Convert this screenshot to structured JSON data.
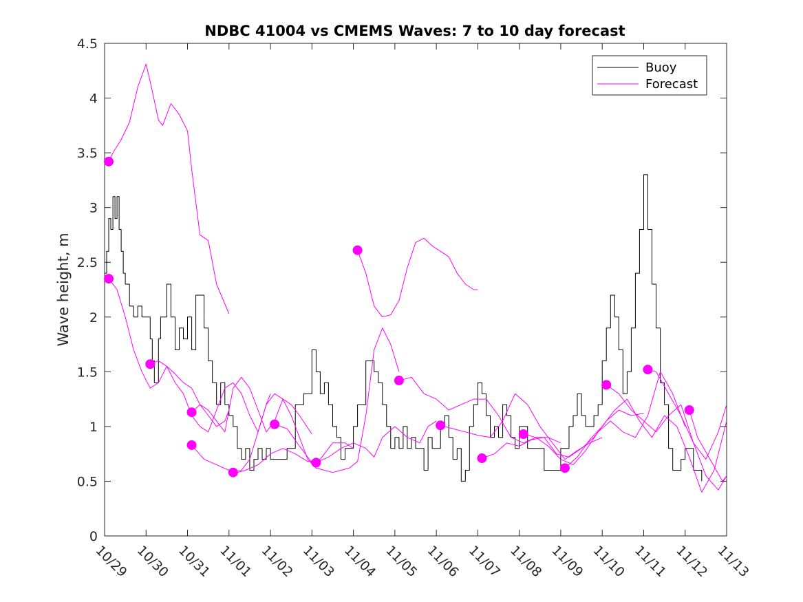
{
  "chart_data": {
    "type": "line",
    "title": "NDBC 41004 vs CMEMS Waves: 7 to 10 day forecast",
    "xlabel": "",
    "ylabel": "Wave height, m",
    "xlim": [
      0,
      15
    ],
    "ylim": [
      0,
      4.5
    ],
    "y_ticks": [
      0,
      0.5,
      1,
      1.5,
      2,
      2.5,
      3,
      3.5,
      4,
      4.5
    ],
    "y_tick_labels": [
      "0",
      "0.5",
      "1",
      "1.5",
      "2",
      "2.5",
      "3",
      "3.5",
      "4",
      "4.5"
    ],
    "x_ticks": [
      0,
      1,
      2,
      3,
      4,
      5,
      6,
      7,
      8,
      9,
      10,
      11,
      12,
      13,
      14,
      15
    ],
    "x_tick_labels": [
      "10/29",
      "10/30",
      "10/31",
      "11/01",
      "11/02",
      "11/03",
      "11/04",
      "11/05",
      "11/06",
      "11/07",
      "11/08",
      "11/09",
      "11/10",
      "11/11",
      "11/12",
      "11/13"
    ],
    "x_unit": "days since 10/29",
    "grid": false,
    "legend": {
      "position": "top-right",
      "entries": [
        "Buoy",
        "Forecast"
      ]
    },
    "colors": {
      "buoy": "#000000",
      "forecast": "#ff00ff",
      "axes": "#262626"
    },
    "series": [
      {
        "name": "Buoy",
        "color": "#000000",
        "step": true,
        "x": [
          0,
          0.05,
          0.1,
          0.15,
          0.2,
          0.25,
          0.3,
          0.35,
          0.4,
          0.45,
          0.5,
          0.6,
          0.7,
          0.8,
          0.9,
          1.0,
          1.1,
          1.15,
          1.2,
          1.3,
          1.35,
          1.4,
          1.5,
          1.6,
          1.7,
          1.8,
          1.9,
          2.0,
          2.1,
          2.2,
          2.3,
          2.4,
          2.5,
          2.6,
          2.7,
          2.8,
          2.9,
          3.0,
          3.1,
          3.2,
          3.3,
          3.4,
          3.5,
          3.6,
          3.7,
          3.8,
          3.9,
          4.0,
          4.2,
          4.4,
          4.6,
          4.8,
          5.0,
          5.1,
          5.2,
          5.3,
          5.4,
          5.5,
          5.6,
          5.7,
          5.8,
          5.9,
          6.0,
          6.1,
          6.3,
          6.5,
          6.6,
          6.7,
          6.8,
          6.9,
          7.0,
          7.1,
          7.2,
          7.3,
          7.4,
          7.5,
          7.6,
          7.7,
          7.8,
          7.9,
          8.0,
          8.1,
          8.2,
          8.3,
          8.4,
          8.5,
          8.6,
          8.7,
          8.8,
          8.9,
          9.0,
          9.1,
          9.2,
          9.3,
          9.4,
          9.5,
          9.6,
          9.7,
          9.8,
          9.9,
          10.0,
          10.2,
          10.4,
          10.6,
          10.8,
          11.0,
          11.1,
          11.2,
          11.3,
          11.4,
          11.5,
          11.6,
          11.7,
          11.8,
          11.9,
          12.0,
          12.1,
          12.2,
          12.3,
          12.4,
          12.5,
          12.6,
          12.7,
          12.8,
          12.9,
          13.0,
          13.1,
          13.2,
          13.3,
          13.4,
          13.5,
          13.6,
          13.7,
          13.8,
          13.9,
          14.0,
          14.2,
          14.4
        ],
        "values": [
          2.4,
          2.6,
          2.9,
          2.8,
          3.1,
          2.9,
          3.1,
          2.8,
          2.6,
          2.4,
          2.3,
          2.1,
          2.0,
          2.1,
          2.0,
          2.0,
          1.8,
          1.6,
          1.4,
          1.8,
          2.0,
          2.0,
          2.3,
          2.0,
          1.7,
          1.9,
          1.8,
          2.0,
          1.7,
          2.2,
          2.2,
          1.9,
          1.6,
          1.4,
          1.2,
          1.4,
          1.2,
          1.1,
          1.0,
          0.8,
          0.7,
          0.8,
          0.6,
          0.7,
          0.8,
          0.7,
          0.8,
          0.7,
          0.7,
          0.8,
          1.2,
          1.3,
          1.7,
          1.5,
          1.3,
          1.4,
          1.2,
          1.0,
          0.9,
          0.7,
          0.8,
          0.8,
          1.0,
          1.2,
          1.6,
          1.5,
          1.4,
          1.2,
          1.0,
          0.8,
          0.9,
          0.8,
          1.0,
          0.8,
          0.9,
          0.8,
          0.8,
          0.6,
          0.9,
          0.8,
          0.8,
          1.0,
          1.1,
          0.9,
          0.7,
          0.8,
          0.5,
          0.6,
          1.0,
          1.2,
          1.4,
          1.3,
          1.1,
          0.9,
          1.0,
          0.9,
          1.2,
          1.1,
          0.9,
          0.8,
          1.0,
          0.8,
          0.8,
          0.6,
          0.6,
          0.8,
          0.8,
          1.0,
          1.1,
          1.3,
          1.1,
          1.0,
          1.0,
          1.1,
          1.2,
          1.6,
          1.9,
          2.2,
          2.0,
          1.7,
          1.3,
          1.5,
          1.9,
          2.4,
          2.8,
          3.3,
          2.8,
          2.3,
          1.9,
          1.4,
          1.2,
          0.8,
          0.6,
          0.6,
          0.7,
          0.8,
          0.6,
          0.5
        ]
      },
      {
        "name": "Forecast",
        "color": "#ff00ff",
        "x": [
          0.1,
          0.2,
          0.4,
          0.6,
          0.8,
          1.0,
          1.1,
          1.3,
          1.4,
          1.6,
          1.8,
          2.0,
          2.1,
          2.3,
          2.5,
          2.7,
          3.0
        ],
        "values": [
          3.42,
          3.5,
          3.62,
          3.78,
          4.1,
          4.31,
          4.15,
          3.8,
          3.75,
          3.95,
          3.85,
          3.7,
          3.35,
          2.75,
          2.7,
          2.3,
          2.03
        ]
      },
      {
        "name": "Forecast",
        "color": "#ff00ff",
        "x": [
          0.1,
          0.3,
          0.5,
          0.7,
          0.9,
          1.1,
          1.3,
          1.5,
          1.7,
          1.9,
          2.1,
          2.3,
          2.5,
          2.7,
          2.9,
          3.0
        ],
        "values": [
          2.35,
          2.25,
          2.0,
          1.7,
          1.5,
          1.35,
          1.4,
          1.55,
          1.48,
          1.4,
          1.35,
          1.2,
          1.1,
          1.0,
          1.05,
          1.15
        ]
      },
      {
        "name": "Forecast",
        "color": "#ff00ff",
        "x": [
          1.1,
          1.3,
          1.5,
          1.7,
          1.9,
          2.1,
          2.3,
          2.5,
          2.7,
          2.9,
          3.1,
          3.3,
          3.5,
          3.7,
          3.9,
          4.0
        ],
        "values": [
          1.57,
          1.6,
          1.55,
          1.4,
          1.3,
          1.1,
          1.0,
          0.95,
          1.15,
          1.35,
          1.4,
          1.3,
          1.1,
          0.95,
          1.2,
          1.3
        ]
      },
      {
        "name": "Forecast",
        "color": "#ff00ff",
        "x": [
          2.1,
          2.3,
          2.5,
          2.7,
          2.9,
          3.1,
          3.3,
          3.5,
          3.7,
          3.9,
          4.1,
          4.3,
          4.5,
          4.7,
          5.0
        ],
        "values": [
          1.13,
          1.2,
          1.15,
          1.05,
          0.95,
          1.35,
          1.45,
          1.35,
          1.15,
          0.95,
          1.05,
          1.25,
          1.2,
          1.1,
          0.93
        ]
      },
      {
        "name": "Forecast",
        "color": "#ff00ff",
        "x": [
          2.1,
          2.4,
          2.7,
          3.0,
          3.2,
          3.4,
          3.7,
          4.0,
          4.3,
          4.6,
          4.9,
          5.2,
          5.5,
          5.8,
          6.0
        ],
        "values": [
          0.83,
          0.7,
          0.65,
          0.6,
          0.58,
          0.6,
          0.65,
          0.75,
          0.8,
          0.75,
          0.68,
          0.7,
          0.85,
          0.85,
          0.8
        ]
      },
      {
        "name": "Forecast",
        "color": "#ff00ff",
        "x": [
          3.1,
          3.3,
          3.5,
          3.7,
          3.9,
          4.1,
          4.3,
          4.5,
          4.7,
          4.9,
          5.1,
          5.3,
          5.5,
          5.7,
          5.9,
          6.1,
          6.3,
          6.5,
          6.7,
          6.9,
          7.1
        ],
        "values": [
          0.58,
          0.6,
          0.7,
          0.95,
          1.2,
          1.3,
          1.25,
          1.1,
          0.9,
          0.7,
          0.62,
          0.6,
          0.58,
          0.6,
          0.62,
          0.68,
          1.1,
          1.7,
          1.9,
          1.75,
          1.5
        ]
      },
      {
        "name": "Forecast",
        "color": "#ff00ff",
        "x": [
          4.1,
          4.4,
          4.7,
          5.0,
          5.15,
          5.4,
          5.7,
          6.0,
          6.3,
          6.5,
          6.7,
          7.0,
          7.3,
          7.6,
          7.8,
          8.0
        ],
        "values": [
          1.02,
          0.98,
          0.82,
          0.67,
          0.68,
          0.72,
          0.8,
          0.85,
          0.8,
          0.72,
          0.9,
          1.0,
          0.9,
          0.85,
          1.0,
          1.05
        ]
      },
      {
        "name": "Forecast",
        "color": "#ff00ff",
        "x": [
          6.1,
          6.3,
          6.5,
          6.7,
          6.9,
          7.1,
          7.3,
          7.5,
          7.7,
          7.9,
          8.1,
          8.3,
          8.5,
          8.7,
          8.9,
          9.0
        ],
        "values": [
          2.61,
          2.4,
          2.1,
          2.0,
          2.02,
          2.15,
          2.45,
          2.68,
          2.72,
          2.65,
          2.6,
          2.55,
          2.4,
          2.3,
          2.25,
          2.25
        ]
      },
      {
        "name": "Forecast",
        "color": "#ff00ff",
        "x": [
          7.1,
          7.4,
          7.7,
          8.0,
          8.3,
          8.6,
          8.9,
          9.2,
          9.5,
          9.8,
          10.1,
          10.4,
          10.7,
          11.0
        ],
        "values": [
          1.42,
          1.45,
          1.3,
          1.25,
          1.15,
          1.2,
          1.25,
          1.25,
          1.1,
          0.9,
          0.85,
          0.9,
          0.9,
          0.85
        ]
      },
      {
        "name": "Forecast",
        "color": "#ff00ff",
        "x": [
          8.1,
          8.4,
          8.7,
          9.0,
          9.3,
          9.6,
          9.9,
          10.2,
          10.5,
          10.8,
          11.1,
          11.4,
          11.7,
          12.0
        ],
        "values": [
          1.01,
          0.98,
          0.95,
          0.92,
          0.9,
          1.05,
          1.3,
          1.2,
          1.0,
          0.85,
          0.7,
          0.78,
          0.85,
          0.9
        ]
      },
      {
        "name": "Forecast",
        "color": "#ff00ff",
        "x": [
          9.1,
          9.4,
          9.7,
          10.0,
          10.3,
          10.6,
          10.9,
          11.2,
          11.5,
          11.8,
          12.1,
          12.4,
          12.7,
          13.0
        ],
        "values": [
          0.71,
          0.75,
          0.85,
          0.82,
          0.88,
          0.9,
          0.75,
          0.72,
          0.8,
          0.9,
          1.05,
          1.15,
          1.1,
          1.12
        ]
      },
      {
        "name": "Forecast",
        "color": "#ff00ff",
        "x": [
          10.1,
          10.4,
          10.7,
          11.0,
          11.3,
          11.6,
          11.9,
          12.2,
          12.5,
          12.8,
          13.1,
          13.4,
          13.7,
          14.0
        ],
        "values": [
          0.93,
          0.9,
          0.82,
          0.7,
          0.65,
          0.78,
          0.95,
          1.05,
          0.95,
          0.9,
          1.1,
          1.5,
          1.3,
          1.0
        ]
      },
      {
        "name": "Forecast",
        "color": "#ff00ff",
        "x": [
          11.1,
          11.4,
          11.7,
          12.0,
          12.3,
          12.6,
          12.9,
          13.2,
          13.5,
          13.8,
          14.1,
          14.4,
          14.7,
          15.0
        ],
        "values": [
          0.62,
          0.72,
          0.88,
          1.0,
          1.15,
          1.25,
          1.05,
          0.9,
          1.1,
          1.0,
          0.72,
          0.4,
          0.6,
          1.05
        ]
      },
      {
        "name": "Forecast",
        "color": "#ff00ff",
        "x": [
          12.1,
          12.4,
          12.7,
          13.0,
          13.3,
          13.6,
          13.9,
          14.2,
          14.5,
          14.8,
          15.0
        ],
        "values": [
          1.38,
          1.3,
          1.15,
          1.05,
          0.95,
          1.1,
          1.2,
          0.85,
          0.55,
          0.42,
          0.55
        ]
      },
      {
        "name": "Forecast",
        "color": "#ff00ff",
        "x": [
          13.1,
          13.3,
          13.6,
          13.9,
          14.2,
          14.5,
          14.8,
          15.0
        ],
        "values": [
          1.52,
          1.5,
          1.3,
          1.1,
          0.85,
          0.7,
          0.95,
          1.2
        ]
      },
      {
        "name": "Forecast",
        "color": "#ff00ff",
        "x": [
          14.1,
          14.3,
          14.6,
          14.9,
          15.0
        ],
        "values": [
          1.15,
          0.9,
          0.7,
          0.5,
          0.55
        ]
      }
    ],
    "markers": {
      "name": "Forecast start",
      "color": "#ff00ff",
      "x": [
        0.1,
        0.1,
        1.1,
        2.1,
        2.1,
        3.1,
        4.1,
        5.1,
        6.1,
        7.1,
        8.1,
        9.1,
        10.1,
        11.1,
        12.1,
        13.1,
        14.1
      ],
      "values": [
        3.42,
        2.35,
        1.57,
        1.13,
        0.83,
        0.58,
        1.02,
        0.67,
        2.61,
        1.42,
        1.01,
        0.71,
        0.93,
        0.62,
        1.38,
        1.52,
        1.15
      ]
    }
  }
}
